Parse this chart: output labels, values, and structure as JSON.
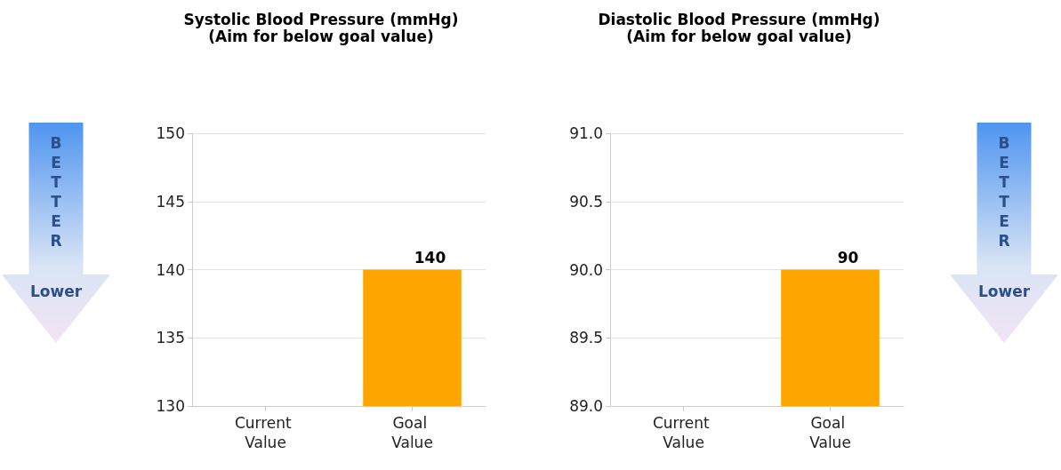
{
  "chart_data": [
    {
      "type": "bar",
      "title": "Systolic Blood Pressure (mmHg)",
      "subtitle": "(Aim for below goal value)",
      "categories": [
        "Current Value",
        "Goal Value"
      ],
      "values": [
        null,
        140
      ],
      "color": "#ffa500",
      "ylim": [
        130,
        150
      ],
      "yticks": [
        130,
        135,
        140,
        145,
        150
      ],
      "grid": "y",
      "data_labels": true,
      "annotations": [
        "BETTER",
        "Lower"
      ]
    },
    {
      "type": "bar",
      "title": "Diastolic Blood Pressure (mmHg)",
      "subtitle": "(Aim for below goal value)",
      "categories": [
        "Current Value",
        "Goal Value"
      ],
      "values": [
        null,
        90
      ],
      "color": "#ffa500",
      "ylim": [
        89,
        91
      ],
      "yticks": [
        {
          "value": 89,
          "label": "89.0"
        },
        {
          "value": 89.5,
          "label": "89.5"
        },
        {
          "value": 90,
          "label": "90.0"
        },
        {
          "value": 90.5,
          "label": "90.5"
        },
        {
          "value": 91,
          "label": "91.0"
        }
      ],
      "grid": "y",
      "data_labels": true,
      "annotations": [
        "BETTER",
        "Lower"
      ]
    }
  ]
}
